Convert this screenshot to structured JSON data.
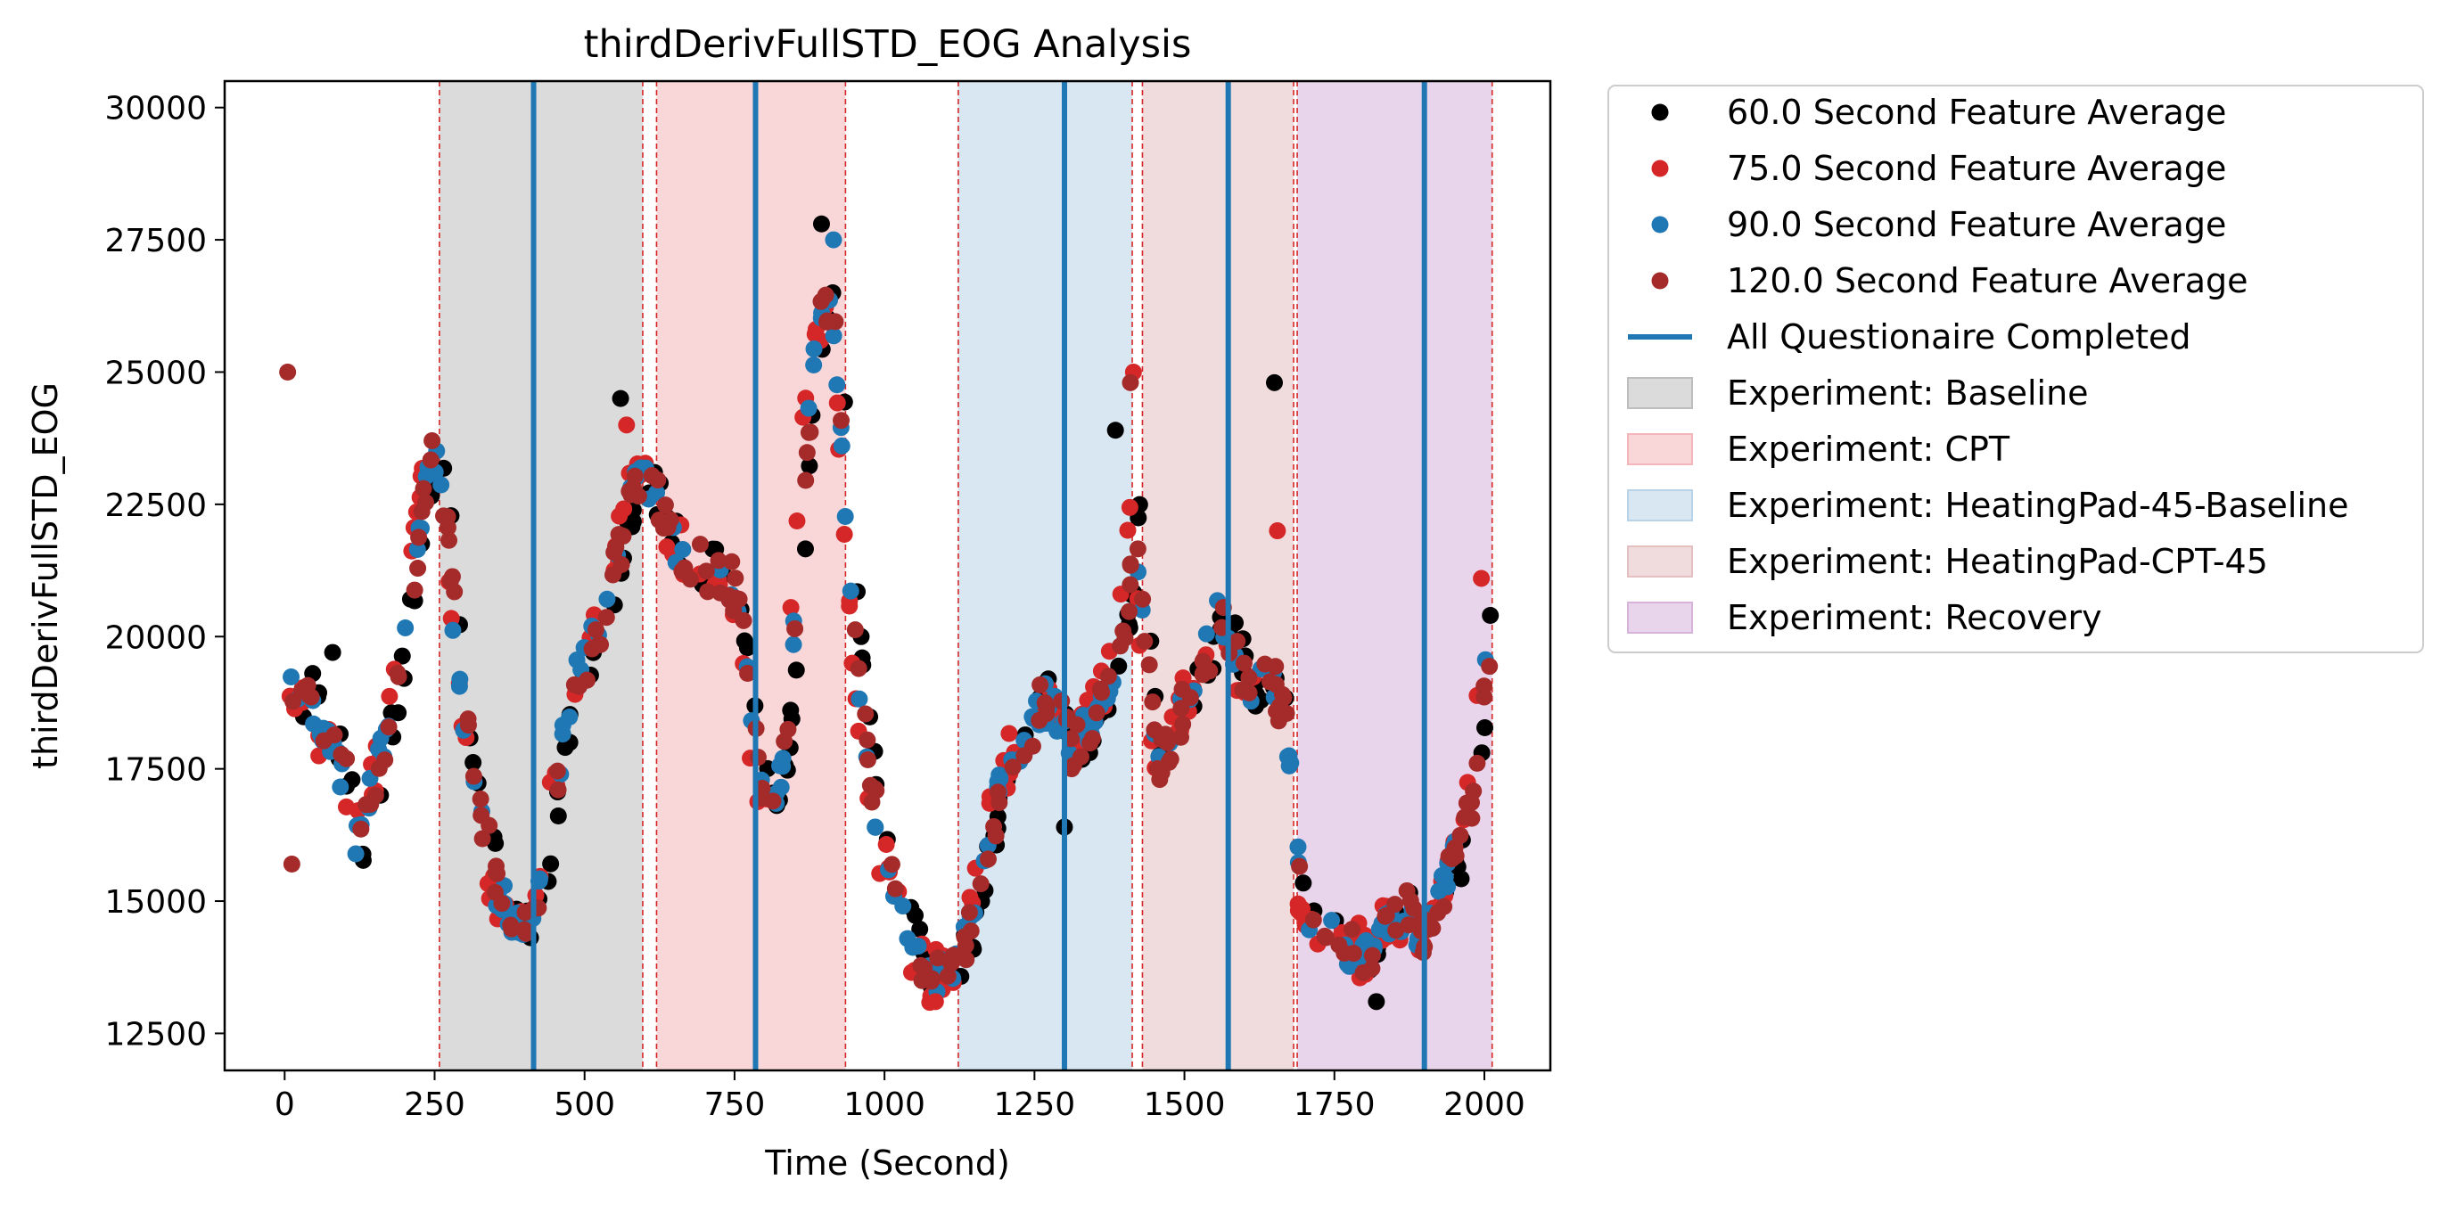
{
  "chart_data": {
    "type": "scatter",
    "title": "thirdDerivFullSTD_EOG Analysis",
    "xlabel": "Time (Second)",
    "ylabel": "thirdDerivFullSTD_EOG",
    "xlim": [
      -100,
      2110
    ],
    "ylim": [
      11800,
      30500
    ],
    "xticks": [
      0,
      250,
      500,
      750,
      1000,
      1250,
      1500,
      1750,
      2000
    ],
    "yticks": [
      12500,
      15000,
      17500,
      20000,
      22500,
      25000,
      27500,
      30000
    ],
    "tick_labels_x": [
      "0",
      "250",
      "500",
      "750",
      "1000",
      "1250",
      "1500",
      "1750",
      "2000"
    ],
    "tick_labels_y": [
      "12500",
      "15000",
      "17500",
      "20000",
      "22500",
      "25000",
      "27500",
      "30000"
    ],
    "grid": false,
    "legend_position": "outside right",
    "series": [
      {
        "name": "60.0 Second Feature Average",
        "color": "#000000"
      },
      {
        "name": "75.0 Second Feature Average",
        "color": "#d62728"
      },
      {
        "name": "90.0 Second Feature Average",
        "color": "#1f77b4"
      },
      {
        "name": "120.0 Second Feature Average",
        "color": "#a52a2a"
      }
    ],
    "trend_points": [
      [
        5,
        20100
      ],
      [
        20,
        18600
      ],
      [
        40,
        19300
      ],
      [
        60,
        18100
      ],
      [
        90,
        17700
      ],
      [
        110,
        17000
      ],
      [
        125,
        16000
      ],
      [
        140,
        16900
      ],
      [
        160,
        17600
      ],
      [
        180,
        18600
      ],
      [
        200,
        20000
      ],
      [
        225,
        22000
      ],
      [
        245,
        23400
      ],
      [
        258,
        23300
      ],
      [
        275,
        21600
      ],
      [
        290,
        19600
      ],
      [
        310,
        17800
      ],
      [
        330,
        16500
      ],
      [
        355,
        15300
      ],
      [
        385,
        14700
      ],
      [
        410,
        14600
      ],
      [
        430,
        15100
      ],
      [
        450,
        16800
      ],
      [
        470,
        18300
      ],
      [
        490,
        19300
      ],
      [
        510,
        19700
      ],
      [
        530,
        20300
      ],
      [
        555,
        21400
      ],
      [
        580,
        22600
      ],
      [
        600,
        23100
      ],
      [
        620,
        22600
      ],
      [
        650,
        21800
      ],
      [
        700,
        21300
      ],
      [
        745,
        21100
      ],
      [
        770,
        19600
      ],
      [
        790,
        17500
      ],
      [
        810,
        16700
      ],
      [
        830,
        17300
      ],
      [
        850,
        19800
      ],
      [
        870,
        23500
      ],
      [
        890,
        25800
      ],
      [
        910,
        26300
      ],
      [
        925,
        25000
      ],
      [
        945,
        21200
      ],
      [
        965,
        18500
      ],
      [
        990,
        16400
      ],
      [
        1020,
        15200
      ],
      [
        1050,
        14200
      ],
      [
        1080,
        13600
      ],
      [
        1100,
        13600
      ],
      [
        1120,
        13900
      ],
      [
        1140,
        14300
      ],
      [
        1165,
        15600
      ],
      [
        1190,
        16900
      ],
      [
        1215,
        17700
      ],
      [
        1240,
        18200
      ],
      [
        1265,
        18800
      ],
      [
        1290,
        18600
      ],
      [
        1310,
        17900
      ],
      [
        1330,
        18100
      ],
      [
        1355,
        18600
      ],
      [
        1380,
        19300
      ],
      [
        1405,
        20600
      ],
      [
        1420,
        22300
      ],
      [
        1430,
        20500
      ],
      [
        1445,
        18600
      ],
      [
        1460,
        17600
      ],
      [
        1480,
        18200
      ],
      [
        1505,
        18800
      ],
      [
        1530,
        19400
      ],
      [
        1560,
        20400
      ],
      [
        1580,
        20000
      ],
      [
        1600,
        19200
      ],
      [
        1620,
        18800
      ],
      [
        1640,
        19400
      ],
      [
        1660,
        18700
      ],
      [
        1680,
        17700
      ],
      [
        1690,
        15800
      ],
      [
        1705,
        14900
      ],
      [
        1730,
        14500
      ],
      [
        1760,
        14200
      ],
      [
        1790,
        14100
      ],
      [
        1815,
        14000
      ],
      [
        1840,
        14500
      ],
      [
        1870,
        14800
      ],
      [
        1895,
        14400
      ],
      [
        1910,
        14500
      ],
      [
        1930,
        15200
      ],
      [
        1955,
        15800
      ],
      [
        1975,
        16700
      ],
      [
        1995,
        18300
      ],
      [
        2010,
        19900
      ]
    ],
    "outliers": [
      {
        "x": 5,
        "y": 25000,
        "series": 3
      },
      {
        "x": 12,
        "y": 15700,
        "series": 3
      },
      {
        "x": 80,
        "y": 19700,
        "series": 0
      },
      {
        "x": 560,
        "y": 24500,
        "series": 0
      },
      {
        "x": 570,
        "y": 24000,
        "series": 1
      },
      {
        "x": 895,
        "y": 27800,
        "series": 0
      },
      {
        "x": 915,
        "y": 27500,
        "series": 2
      },
      {
        "x": 1415,
        "y": 25000,
        "series": 1
      },
      {
        "x": 1410,
        "y": 24800,
        "series": 3
      },
      {
        "x": 1385,
        "y": 23900,
        "series": 0
      },
      {
        "x": 1650,
        "y": 24800,
        "series": 0
      },
      {
        "x": 1655,
        "y": 22000,
        "series": 1
      },
      {
        "x": 1995,
        "y": 21100,
        "series": 1
      },
      {
        "x": 2010,
        "y": 20400,
        "series": 0
      },
      {
        "x": 1300,
        "y": 16400,
        "series": 0
      },
      {
        "x": 1085,
        "y": 13100,
        "series": 1
      },
      {
        "x": 1820,
        "y": 13100,
        "series": 0
      }
    ],
    "questionnaire_completed": {
      "label": "All Questionaire Completed",
      "color": "#1f77b4",
      "x": [
        415,
        785,
        1300,
        1573,
        1900
      ]
    },
    "experiments": [
      {
        "label": "Experiment: Baseline",
        "color": "#bdbdbd",
        "start": 258,
        "end": 597
      },
      {
        "label": "Experiment: CPT",
        "color": "#f4b6ba",
        "start": 620,
        "end": 935
      },
      {
        "label": "Experiment: HeatingPad-45-Baseline",
        "color": "#b8d3e8",
        "start": 1123,
        "end": 1413
      },
      {
        "label": "Experiment: HeatingPad-CPT-45",
        "color": "#e4c0c0",
        "start": 1430,
        "end": 1682
      },
      {
        "label": "Experiment: Recovery",
        "color": "#d7b2da",
        "start": 1688,
        "end": 2013
      }
    ],
    "boundary_lines": [
      258,
      597,
      620,
      935,
      1123,
      1413,
      1430,
      1682,
      1688,
      2013
    ]
  }
}
